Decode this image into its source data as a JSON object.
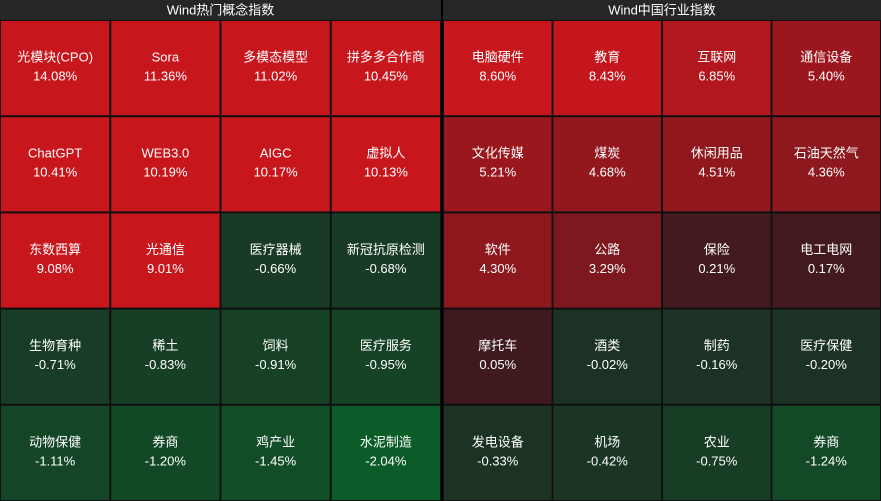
{
  "chart_data": [
    {
      "type": "heatmap",
      "title": "Wind热门概念指数",
      "categories": [
        "光模块(CPO)",
        "Sora",
        "多模态模型",
        "拼多多合作商",
        "ChatGPT",
        "WEB3.0",
        "AIGC",
        "虚拟人",
        "东数西算",
        "光通信",
        "医疗器械",
        "新冠抗原检测",
        "生物育种",
        "稀土",
        "饲料",
        "医疗服务",
        "动物保健",
        "券商",
        "鸡产业",
        "水泥制造"
      ],
      "values": [
        14.08,
        11.36,
        11.02,
        10.45,
        10.41,
        10.19,
        10.17,
        10.13,
        9.08,
        9.01,
        -0.66,
        -0.68,
        -0.71,
        -0.83,
        -0.91,
        -0.95,
        -1.11,
        -1.2,
        -1.45,
        -2.04
      ],
      "value_labels": [
        "14.08%",
        "11.36%",
        "11.02%",
        "10.45%",
        "10.41%",
        "10.19%",
        "10.17%",
        "10.13%",
        "9.08%",
        "9.01%",
        "-0.66%",
        "-0.68%",
        "-0.71%",
        "-0.83%",
        "-0.91%",
        "-0.95%",
        "-1.11%",
        "-1.20%",
        "-1.45%",
        "-2.04%"
      ]
    },
    {
      "type": "heatmap",
      "title": "Wind中国行业指数",
      "categories": [
        "电脑硬件",
        "教育",
        "互联网",
        "通信设备",
        "文化传媒",
        "煤炭",
        "休闲用品",
        "石油天然气",
        "软件",
        "公路",
        "保险",
        "电工电网",
        "摩托车",
        "酒类",
        "制药",
        "医疗保健",
        "发电设备",
        "机场",
        "农业",
        "券商"
      ],
      "values": [
        8.6,
        8.43,
        6.85,
        5.4,
        5.21,
        4.68,
        4.51,
        4.36,
        4.3,
        3.29,
        0.21,
        0.17,
        0.05,
        -0.02,
        -0.16,
        -0.2,
        -0.33,
        -0.42,
        -0.75,
        -1.24
      ],
      "value_labels": [
        "8.60%",
        "8.43%",
        "6.85%",
        "5.40%",
        "5.21%",
        "4.68%",
        "4.51%",
        "4.36%",
        "4.30%",
        "3.29%",
        "0.21%",
        "0.17%",
        "0.05%",
        "-0.02%",
        "-0.16%",
        "-0.20%",
        "-0.33%",
        "-0.42%",
        "-0.75%",
        "-1.24%"
      ]
    }
  ]
}
